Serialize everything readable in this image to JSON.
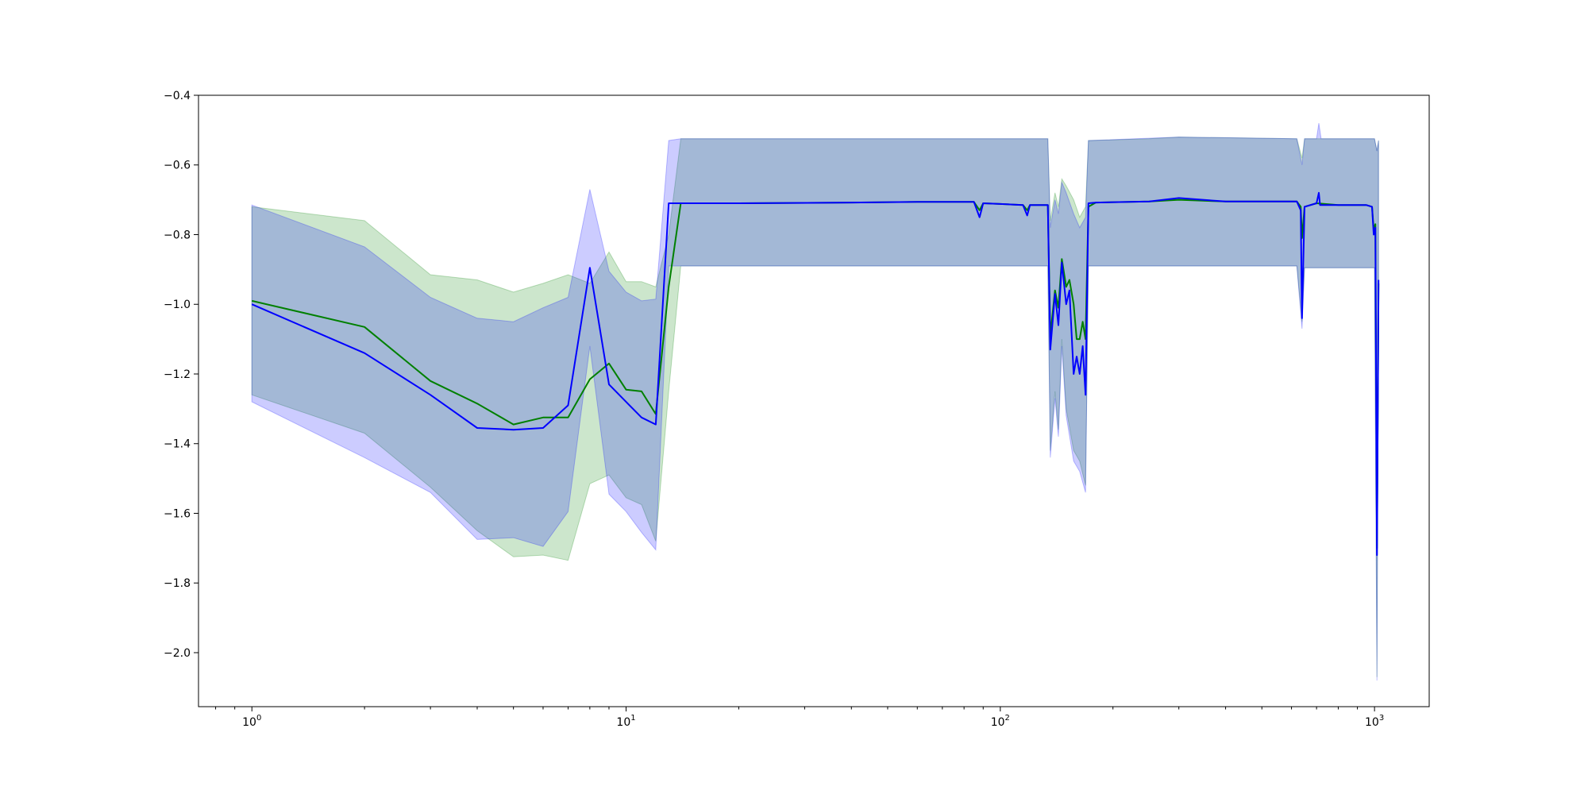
{
  "chart_data": {
    "type": "line",
    "title": "",
    "xlabel": "",
    "ylabel": "",
    "xscale": "log",
    "xlim": [
      0.72,
      1400
    ],
    "ylim": [
      -2.155,
      -0.4
    ],
    "grid": false,
    "legend": "none",
    "x_ticks": [
      {
        "base": "10",
        "exp": "0",
        "value": 1
      },
      {
        "base": "10",
        "exp": "1",
        "value": 10
      },
      {
        "base": "10",
        "exp": "2",
        "value": 100
      },
      {
        "base": "10",
        "exp": "3",
        "value": 1000
      }
    ],
    "y_ticks": [
      {
        "label": "−0.4",
        "value": -0.4
      },
      {
        "label": "−0.6",
        "value": -0.6
      },
      {
        "label": "−0.8",
        "value": -0.8
      },
      {
        "label": "−1.0",
        "value": -1.0
      },
      {
        "label": "−1.2",
        "value": -1.2
      },
      {
        "label": "−1.4",
        "value": -1.4
      },
      {
        "label": "−1.6",
        "value": -1.6
      },
      {
        "label": "−1.8",
        "value": -1.8
      },
      {
        "label": "−2.0",
        "value": -2.0
      }
    ],
    "series": [
      {
        "color": "#008000",
        "band_color": "#008000",
        "band_opacity": 0.2,
        "mean": [
          [
            1,
            -0.99
          ],
          [
            2,
            -1.065
          ],
          [
            3,
            -1.22
          ],
          [
            4,
            -1.285
          ],
          [
            5,
            -1.345
          ],
          [
            6,
            -1.325
          ],
          [
            7,
            -1.325
          ],
          [
            8,
            -1.215
          ],
          [
            9,
            -1.17
          ],
          [
            10,
            -1.245
          ],
          [
            11,
            -1.25
          ],
          [
            12,
            -1.315
          ],
          [
            13,
            -0.95
          ],
          [
            14,
            -0.71
          ],
          [
            20,
            -0.71
          ],
          [
            40,
            -0.708
          ],
          [
            60,
            -0.706
          ],
          [
            85,
            -0.706
          ],
          [
            88,
            -0.73
          ],
          [
            90,
            -0.71
          ],
          [
            100,
            -0.712
          ],
          [
            115,
            -0.715
          ],
          [
            118,
            -0.73
          ],
          [
            120,
            -0.715
          ],
          [
            134,
            -0.715
          ],
          [
            136,
            -1.09
          ],
          [
            140,
            -0.96
          ],
          [
            143,
            -1.01
          ],
          [
            146,
            -0.87
          ],
          [
            150,
            -0.95
          ],
          [
            153,
            -0.93
          ],
          [
            157,
            -1.0
          ],
          [
            160,
            -1.1
          ],
          [
            163,
            -1.1
          ],
          [
            166,
            -1.05
          ],
          [
            169,
            -1.1
          ],
          [
            172,
            -0.72
          ],
          [
            180,
            -0.708
          ],
          [
            250,
            -0.705
          ],
          [
            300,
            -0.7
          ],
          [
            400,
            -0.705
          ],
          [
            500,
            -0.705
          ],
          [
            620,
            -0.705
          ],
          [
            635,
            -0.72
          ],
          [
            640,
            -0.81
          ],
          [
            650,
            -0.72
          ],
          [
            700,
            -0.71
          ],
          [
            800,
            -0.715
          ],
          [
            950,
            -0.715
          ],
          [
            985,
            -0.72
          ],
          [
            995,
            -0.785
          ],
          [
            1005,
            -0.77
          ],
          [
            1015,
            -1.7
          ],
          [
            1025,
            -0.94
          ]
        ],
        "upper": [
          [
            1,
            -0.72
          ],
          [
            2,
            -0.76
          ],
          [
            3,
            -0.915
          ],
          [
            4,
            -0.93
          ],
          [
            5,
            -0.965
          ],
          [
            6,
            -0.94
          ],
          [
            7,
            -0.915
          ],
          [
            8,
            -0.94
          ],
          [
            9,
            -0.85
          ],
          [
            10,
            -0.935
          ],
          [
            11,
            -0.935
          ],
          [
            12,
            -0.95
          ],
          [
            13,
            -0.8
          ],
          [
            14,
            -0.525
          ],
          [
            100,
            -0.525
          ],
          [
            134,
            -0.525
          ],
          [
            136,
            -0.76
          ],
          [
            140,
            -0.68
          ],
          [
            143,
            -0.72
          ],
          [
            146,
            -0.64
          ],
          [
            150,
            -0.66
          ],
          [
            157,
            -0.7
          ],
          [
            163,
            -0.75
          ],
          [
            169,
            -0.72
          ],
          [
            172,
            -0.53
          ],
          [
            250,
            -0.525
          ],
          [
            300,
            -0.52
          ],
          [
            620,
            -0.525
          ],
          [
            640,
            -0.58
          ],
          [
            650,
            -0.525
          ],
          [
            1000,
            -0.525
          ],
          [
            1015,
            -0.56
          ],
          [
            1025,
            -0.53
          ]
        ],
        "lower": [
          [
            1,
            -1.26
          ],
          [
            2,
            -1.37
          ],
          [
            3,
            -1.525
          ],
          [
            4,
            -1.65
          ],
          [
            5,
            -1.725
          ],
          [
            6,
            -1.72
          ],
          [
            7,
            -1.735
          ],
          [
            8,
            -1.515
          ],
          [
            9,
            -1.49
          ],
          [
            10,
            -1.555
          ],
          [
            11,
            -1.575
          ],
          [
            12,
            -1.68
          ],
          [
            13,
            -1.25
          ],
          [
            14,
            -0.89
          ],
          [
            100,
            -0.89
          ],
          [
            134,
            -0.89
          ],
          [
            136,
            -1.42
          ],
          [
            140,
            -1.25
          ],
          [
            143,
            -1.36
          ],
          [
            146,
            -1.1
          ],
          [
            150,
            -1.3
          ],
          [
            157,
            -1.42
          ],
          [
            163,
            -1.45
          ],
          [
            169,
            -1.52
          ],
          [
            172,
            -0.89
          ],
          [
            620,
            -0.89
          ],
          [
            640,
            -1.05
          ],
          [
            650,
            -0.895
          ],
          [
            1000,
            -0.895
          ],
          [
            1015,
            -2.07
          ],
          [
            1025,
            -1.0
          ]
        ]
      },
      {
        "color": "#0000ff",
        "band_color": "#0000ff",
        "band_opacity": 0.2,
        "mean": [
          [
            1,
            -1.0
          ],
          [
            2,
            -1.14
          ],
          [
            3,
            -1.26
          ],
          [
            4,
            -1.355
          ],
          [
            5,
            -1.36
          ],
          [
            6,
            -1.355
          ],
          [
            7,
            -1.29
          ],
          [
            8,
            -0.895
          ],
          [
            9,
            -1.23
          ],
          [
            10,
            -1.28
          ],
          [
            11,
            -1.325
          ],
          [
            12,
            -1.345
          ],
          [
            13,
            -0.71
          ],
          [
            14,
            -0.71
          ],
          [
            20,
            -0.71
          ],
          [
            40,
            -0.708
          ],
          [
            60,
            -0.706
          ],
          [
            85,
            -0.706
          ],
          [
            88,
            -0.75
          ],
          [
            90,
            -0.71
          ],
          [
            100,
            -0.712
          ],
          [
            115,
            -0.715
          ],
          [
            118,
            -0.745
          ],
          [
            120,
            -0.715
          ],
          [
            134,
            -0.715
          ],
          [
            136,
            -1.13
          ],
          [
            140,
            -0.97
          ],
          [
            143,
            -1.06
          ],
          [
            146,
            -0.88
          ],
          [
            150,
            -1.0
          ],
          [
            153,
            -0.96
          ],
          [
            157,
            -1.2
          ],
          [
            160,
            -1.15
          ],
          [
            163,
            -1.2
          ],
          [
            166,
            -1.12
          ],
          [
            169,
            -1.26
          ],
          [
            172,
            -0.71
          ],
          [
            180,
            -0.708
          ],
          [
            250,
            -0.705
          ],
          [
            300,
            -0.695
          ],
          [
            400,
            -0.705
          ],
          [
            500,
            -0.705
          ],
          [
            620,
            -0.705
          ],
          [
            635,
            -0.73
          ],
          [
            640,
            -1.04
          ],
          [
            650,
            -0.72
          ],
          [
            700,
            -0.71
          ],
          [
            710,
            -0.68
          ],
          [
            715,
            -0.715
          ],
          [
            800,
            -0.715
          ],
          [
            950,
            -0.715
          ],
          [
            985,
            -0.72
          ],
          [
            995,
            -0.8
          ],
          [
            1005,
            -0.78
          ],
          [
            1015,
            -1.72
          ],
          [
            1025,
            -0.93
          ]
        ],
        "upper": [
          [
            1,
            -0.715
          ],
          [
            2,
            -0.835
          ],
          [
            3,
            -0.98
          ],
          [
            4,
            -1.04
          ],
          [
            5,
            -1.05
          ],
          [
            6,
            -1.01
          ],
          [
            7,
            -0.98
          ],
          [
            8,
            -0.67
          ],
          [
            9,
            -0.905
          ],
          [
            10,
            -0.965
          ],
          [
            11,
            -0.99
          ],
          [
            12,
            -0.985
          ],
          [
            13,
            -0.53
          ],
          [
            14,
            -0.525
          ],
          [
            100,
            -0.525
          ],
          [
            134,
            -0.525
          ],
          [
            136,
            -0.78
          ],
          [
            140,
            -0.7
          ],
          [
            143,
            -0.74
          ],
          [
            146,
            -0.65
          ],
          [
            150,
            -0.68
          ],
          [
            157,
            -0.74
          ],
          [
            163,
            -0.78
          ],
          [
            169,
            -0.75
          ],
          [
            172,
            -0.53
          ],
          [
            300,
            -0.52
          ],
          [
            620,
            -0.525
          ],
          [
            640,
            -0.6
          ],
          [
            650,
            -0.525
          ],
          [
            700,
            -0.525
          ],
          [
            710,
            -0.48
          ],
          [
            720,
            -0.525
          ],
          [
            1000,
            -0.525
          ],
          [
            1015,
            -0.56
          ],
          [
            1025,
            -0.53
          ]
        ],
        "lower": [
          [
            1,
            -1.28
          ],
          [
            2,
            -1.44
          ],
          [
            3,
            -1.54
          ],
          [
            4,
            -1.675
          ],
          [
            5,
            -1.67
          ],
          [
            6,
            -1.695
          ],
          [
            7,
            -1.595
          ],
          [
            8,
            -1.12
          ],
          [
            9,
            -1.545
          ],
          [
            10,
            -1.595
          ],
          [
            11,
            -1.655
          ],
          [
            12,
            -1.705
          ],
          [
            13,
            -0.89
          ],
          [
            14,
            -0.89
          ],
          [
            100,
            -0.89
          ],
          [
            134,
            -0.89
          ],
          [
            136,
            -1.44
          ],
          [
            140,
            -1.27
          ],
          [
            143,
            -1.38
          ],
          [
            146,
            -1.12
          ],
          [
            150,
            -1.32
          ],
          [
            157,
            -1.45
          ],
          [
            163,
            -1.48
          ],
          [
            169,
            -1.54
          ],
          [
            172,
            -0.89
          ],
          [
            620,
            -0.89
          ],
          [
            640,
            -1.07
          ],
          [
            650,
            -0.895
          ],
          [
            1000,
            -0.895
          ],
          [
            1015,
            -2.08
          ],
          [
            1025,
            -1.0
          ]
        ]
      }
    ]
  }
}
